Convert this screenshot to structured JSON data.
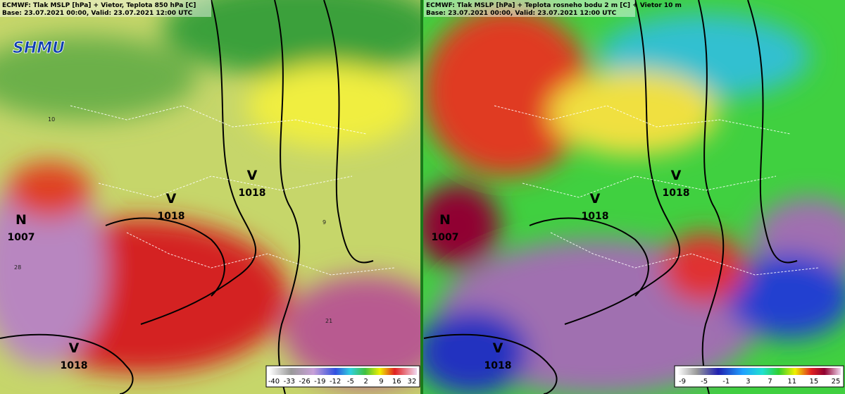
{
  "panels": [
    {
      "title": "ECMWF: Tlak MSLP [hPa] + Vietor, Teplota 850 hPa [C]",
      "base": "Base: 23.07.2021 00:00, Valid: 23.07.2021 12:00 UTC",
      "logo": "SHMU",
      "centers": [
        {
          "letter": "V",
          "value": 1018
        },
        {
          "letter": "V",
          "value": 1018
        },
        {
          "letter": "N",
          "value": 1007
        },
        {
          "letter": "V",
          "value": 1018
        }
      ],
      "contour_labels": [
        "10",
        "28",
        "9",
        "21"
      ],
      "colorbar": [
        -40,
        -33,
        -26,
        -19,
        -12,
        -5,
        2,
        9,
        16,
        32
      ]
    },
    {
      "title": "ECMWF: Tlak MSLP [hPa] + Teplota rosneho bodu 2 m [C] + Vietor 10 m",
      "base": "Base: 23.07.2021 00:00, Valid: 23.07.2021 12:00 UTC",
      "centers": [
        {
          "letter": "V",
          "value": 1018
        },
        {
          "letter": "V",
          "value": 1018
        },
        {
          "letter": "N",
          "value": 1007
        },
        {
          "letter": "V",
          "value": 1018
        }
      ],
      "colorbar": [
        -9,
        -5,
        -1,
        3,
        7,
        11,
        15,
        25
      ]
    }
  ]
}
